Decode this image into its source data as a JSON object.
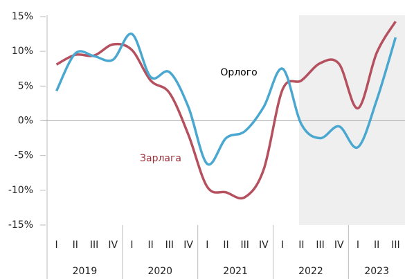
{
  "chart_data": {
    "type": "line",
    "groups": [
      {
        "label": "2019",
        "categories": [
          "I",
          "II",
          "III",
          "IV"
        ]
      },
      {
        "label": "2020",
        "categories": [
          "I",
          "II",
          "III",
          "IV"
        ]
      },
      {
        "label": "2021",
        "categories": [
          "I",
          "II",
          "III",
          "IV"
        ]
      },
      {
        "label": "2022",
        "categories": [
          "I",
          "II",
          "III",
          "IV"
        ]
      },
      {
        "label": "2023",
        "categories": [
          "I",
          "II",
          "III"
        ]
      }
    ],
    "series": [
      {
        "name": "Орлого",
        "color": "#4aa8d0",
        "label_color": "#000000",
        "values": [
          4.3,
          9.7,
          9.3,
          8.8,
          12.5,
          6.3,
          7.0,
          2.0,
          -6.2,
          -2.5,
          -1.5,
          2.0,
          7.5,
          -0.5,
          -2.5,
          -0.8,
          -3.8,
          3.0,
          12.0
        ]
      },
      {
        "name": "Зарлага",
        "color": "#b5505f",
        "label_color": "#a0303a",
        "values": [
          8.1,
          9.5,
          9.4,
          11.0,
          10.2,
          5.8,
          4.0,
          -2.0,
          -9.5,
          -10.3,
          -11.0,
          -7.0,
          4.5,
          5.8,
          8.3,
          8.2,
          1.8,
          9.8,
          14.3
        ]
      }
    ],
    "ylim": [
      -15,
      15
    ],
    "yticks": [
      {
        "value": 15,
        "label": "15%"
      },
      {
        "value": 10,
        "label": "10%"
      },
      {
        "value": 5,
        "label": "5%"
      },
      {
        "value": 0,
        "label": "0%"
      },
      {
        "value": -5,
        "label": "-5%"
      },
      {
        "value": -10,
        "label": "-10%"
      },
      {
        "value": -15,
        "label": "-15%"
      }
    ],
    "grid": false
  }
}
